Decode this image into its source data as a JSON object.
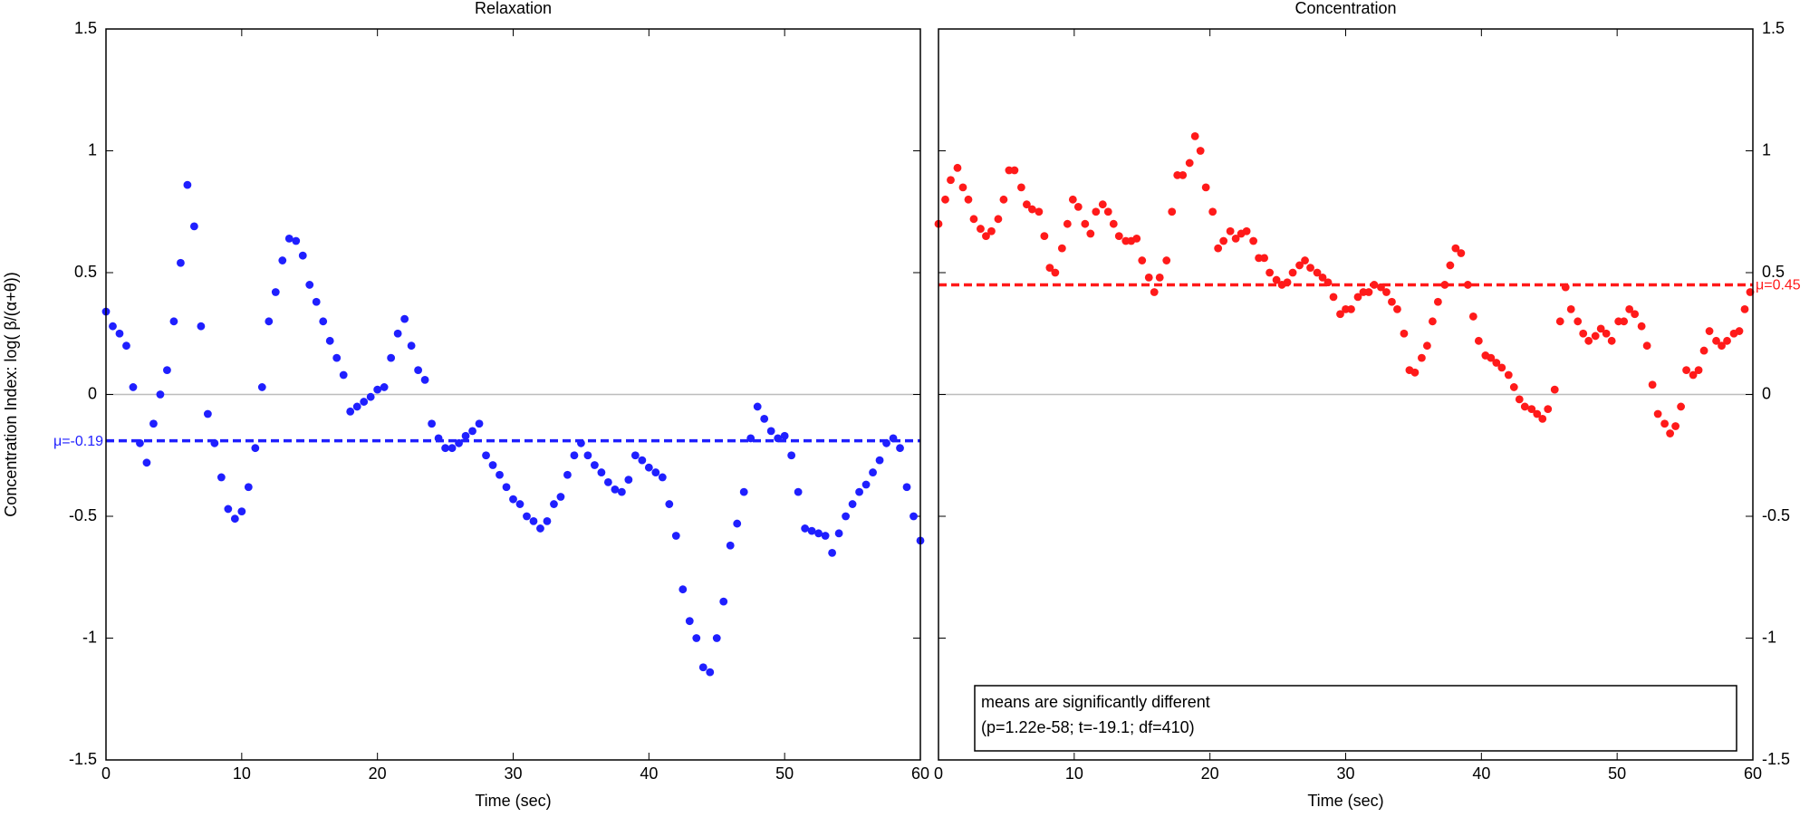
{
  "chart_data": [
    {
      "type": "scatter",
      "title": "Relaxation",
      "xlabel": "Time (sec)",
      "ylabel": "Concentration Index:  log( β/(α+θ))",
      "color": "#1f1fff",
      "yaxis_side": "left",
      "xlim": [
        0,
        60
      ],
      "xticks": [
        0,
        10,
        20,
        30,
        40,
        50,
        60
      ],
      "ylim": [
        -1.5,
        1.5
      ],
      "yticks": [
        -1.5,
        -1,
        -0.5,
        0,
        0.5,
        1,
        1.5
      ],
      "hlines": [
        0
      ],
      "mean_line": {
        "value": -0.19,
        "label": "μ=-0.19"
      },
      "x": [
        0,
        0.5,
        1,
        1.5,
        2,
        2.5,
        3,
        3.5,
        4,
        4.5,
        5,
        5.5,
        6,
        6.5,
        7,
        7.5,
        8,
        8.5,
        9,
        9.5,
        10,
        10.5,
        11,
        11.5,
        12,
        12.5,
        13,
        13.5,
        14,
        14.5,
        15,
        15.5,
        16,
        16.5,
        17,
        17.5,
        18,
        18.5,
        19,
        19.5,
        20,
        20.5,
        21,
        21.5,
        22,
        22.5,
        23,
        23.5,
        24,
        24.5,
        25,
        25.5,
        26,
        26.5,
        27,
        27.5,
        28,
        28.5,
        29,
        29.5,
        30,
        30.5,
        31,
        31.5,
        32,
        32.5,
        33,
        33.5,
        34,
        34.5,
        35,
        35.5,
        36,
        36.5,
        37,
        37.5,
        38,
        38.5,
        39,
        39.5,
        40,
        40.5,
        41,
        41.5,
        42,
        42.5,
        43,
        43.5,
        44,
        44.5,
        45,
        45.5,
        46,
        46.5,
        47,
        47.5,
        48,
        48.5,
        49,
        49.5,
        50,
        50.5,
        51,
        51.5,
        52,
        52.5,
        53,
        53.5,
        54,
        54.5,
        55,
        55.5,
        56,
        56.5,
        57,
        57.5,
        58,
        58.5,
        59,
        59.5,
        60
      ],
      "values": [
        0.34,
        0.28,
        0.25,
        0.2,
        0.03,
        -0.2,
        -0.28,
        -0.12,
        0.0,
        0.1,
        0.3,
        0.54,
        0.86,
        0.69,
        0.28,
        -0.08,
        -0.2,
        -0.34,
        -0.47,
        -0.51,
        -0.48,
        -0.38,
        -0.22,
        0.03,
        0.3,
        0.42,
        0.55,
        0.64,
        0.63,
        0.57,
        0.45,
        0.38,
        0.3,
        0.22,
        0.15,
        0.08,
        -0.07,
        -0.05,
        -0.03,
        -0.01,
        0.02,
        0.03,
        0.15,
        0.25,
        0.31,
        0.2,
        0.1,
        0.06,
        -0.12,
        -0.18,
        -0.22,
        -0.22,
        -0.2,
        -0.17,
        -0.15,
        -0.12,
        -0.25,
        -0.29,
        -0.33,
        -0.38,
        -0.43,
        -0.45,
        -0.5,
        -0.52,
        -0.55,
        -0.52,
        -0.45,
        -0.42,
        -0.33,
        -0.25,
        -0.2,
        -0.25,
        -0.29,
        -0.32,
        -0.36,
        -0.39,
        -0.4,
        -0.35,
        -0.25,
        -0.27,
        -0.3,
        -0.32,
        -0.34,
        -0.45,
        -0.58,
        -0.8,
        -0.93,
        -1.0,
        -1.12,
        -1.14,
        -1.0,
        -0.85,
        -0.62,
        -0.53,
        -0.4,
        -0.18,
        -0.05,
        -0.1,
        -0.15,
        -0.18,
        -0.17,
        -0.25,
        -0.4,
        -0.55,
        -0.56,
        -0.57,
        -0.58,
        -0.65,
        -0.57,
        -0.5,
        -0.45,
        -0.4,
        -0.37,
        -0.32,
        -0.27,
        -0.2,
        -0.18,
        -0.22,
        -0.38,
        -0.5,
        -0.6
      ]
    },
    {
      "type": "scatter",
      "title": "Concentration",
      "xlabel": "Time (sec)",
      "color": "#ff1a1a",
      "yaxis_side": "right",
      "xlim": [
        0,
        60
      ],
      "xticks": [
        0,
        10,
        20,
        30,
        40,
        50,
        60
      ],
      "ylim": [
        -1.5,
        1.5
      ],
      "yticks": [
        -1.5,
        -1,
        -0.5,
        0,
        0.5,
        1,
        1.5
      ],
      "hlines": [
        0
      ],
      "mean_line": {
        "value": 0.45,
        "label": "μ=0.45"
      },
      "annotation": [
        "means are significantly different",
        "(p=1.22e-58; t=-19.1; df=410)"
      ],
      "x": [
        0,
        0.5,
        0.9,
        1.4,
        1.8,
        2.2,
        2.6,
        3.1,
        3.5,
        3.9,
        4.4,
        4.8,
        5.2,
        5.6,
        6.1,
        6.5,
        6.9,
        7.4,
        7.8,
        8.2,
        8.6,
        9.1,
        9.5,
        9.9,
        10.3,
        10.8,
        11.2,
        11.6,
        12.1,
        12.5,
        12.9,
        13.3,
        13.8,
        14.2,
        14.6,
        15,
        15.5,
        15.9,
        16.3,
        16.8,
        17.2,
        17.6,
        18,
        18.5,
        18.9,
        19.3,
        19.7,
        20.2,
        20.6,
        21,
        21.5,
        21.9,
        22.3,
        22.7,
        23.2,
        23.6,
        24,
        24.4,
        24.9,
        25.3,
        25.7,
        26.1,
        26.6,
        27,
        27.4,
        27.9,
        28.3,
        28.7,
        29.1,
        29.6,
        30,
        30.4,
        30.9,
        31.3,
        31.7,
        32.1,
        32.6,
        33,
        33.4,
        33.8,
        34.3,
        34.7,
        35.1,
        35.6,
        36,
        36.4,
        36.8,
        37.3,
        37.7,
        38.1,
        38.5,
        39,
        39.4,
        39.8,
        40.3,
        40.7,
        41.1,
        41.5,
        42,
        42.4,
        42.8,
        43.2,
        43.7,
        44.1,
        44.5,
        44.9,
        45.4,
        45.8,
        46.2,
        46.6,
        47.1,
        47.5,
        47.9,
        48.4,
        48.8,
        49.2,
        49.6,
        50.1,
        50.5,
        50.9,
        51.3,
        51.8,
        52.2,
        52.6,
        53,
        53.5,
        53.9,
        54.3,
        54.7,
        55.1,
        55.6,
        56,
        56.4,
        56.8,
        57.3,
        57.7,
        58.1,
        58.6,
        59,
        59.4,
        59.8
      ],
      "values": [
        0.7,
        0.8,
        0.88,
        0.93,
        0.85,
        0.8,
        0.72,
        0.68,
        0.65,
        0.67,
        0.72,
        0.8,
        0.92,
        0.92,
        0.85,
        0.78,
        0.76,
        0.75,
        0.65,
        0.52,
        0.5,
        0.6,
        0.7,
        0.8,
        0.77,
        0.7,
        0.66,
        0.75,
        0.78,
        0.75,
        0.7,
        0.65,
        0.63,
        0.63,
        0.64,
        0.55,
        0.48,
        0.42,
        0.48,
        0.55,
        0.75,
        0.9,
        0.9,
        0.95,
        1.06,
        1.0,
        0.85,
        0.75,
        0.6,
        0.63,
        0.67,
        0.64,
        0.66,
        0.67,
        0.63,
        0.56,
        0.56,
        0.5,
        0.47,
        0.45,
        0.46,
        0.5,
        0.53,
        0.55,
        0.52,
        0.5,
        0.48,
        0.46,
        0.4,
        0.33,
        0.35,
        0.35,
        0.4,
        0.42,
        0.42,
        0.45,
        0.44,
        0.42,
        0.38,
        0.35,
        0.25,
        0.1,
        0.09,
        0.15,
        0.2,
        0.3,
        0.38,
        0.45,
        0.53,
        0.6,
        0.58,
        0.45,
        0.32,
        0.22,
        0.16,
        0.15,
        0.13,
        0.11,
        0.08,
        0.03,
        -0.02,
        -0.05,
        -0.06,
        -0.08,
        -0.1,
        -0.06,
        0.02,
        0.3,
        0.44,
        0.35,
        0.3,
        0.25,
        0.22,
        0.24,
        0.27,
        0.25,
        0.22,
        0.3,
        0.3,
        0.35,
        0.33,
        0.28,
        0.2,
        0.04,
        -0.08,
        -0.12,
        -0.16,
        -0.13,
        -0.05,
        0.1,
        0.08,
        0.1,
        0.18,
        0.26,
        0.22,
        0.2,
        0.22,
        0.25,
        0.26,
        0.35,
        0.42
      ]
    }
  ]
}
